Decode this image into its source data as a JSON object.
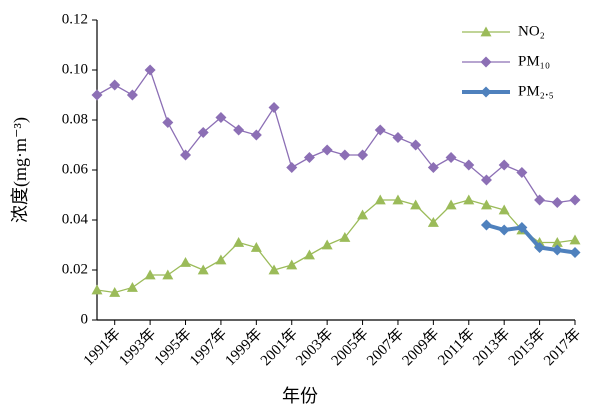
{
  "chart_data": {
    "type": "line",
    "x_label": "年份",
    "y_label": "浓度(mg·m⁻³)",
    "x": [
      1990,
      1991,
      1992,
      1993,
      1994,
      1995,
      1996,
      1997,
      1998,
      1999,
      2000,
      2001,
      2002,
      2003,
      2004,
      2005,
      2006,
      2007,
      2008,
      2009,
      2010,
      2011,
      2012,
      2013,
      2014,
      2015,
      2016,
      2017
    ],
    "xlim": [
      1990,
      2017
    ],
    "xticks": [
      {
        "value": 1991,
        "label": "1991年"
      },
      {
        "value": 1993,
        "label": "1993年"
      },
      {
        "value": 1995,
        "label": "1995年"
      },
      {
        "value": 1997,
        "label": "1997年"
      },
      {
        "value": 1999,
        "label": "1999年"
      },
      {
        "value": 2001,
        "label": "2001年"
      },
      {
        "value": 2003,
        "label": "2003年"
      },
      {
        "value": 2005,
        "label": "2005年"
      },
      {
        "value": 2007,
        "label": "2007年"
      },
      {
        "value": 2009,
        "label": "2009年"
      },
      {
        "value": 2011,
        "label": "2011年"
      },
      {
        "value": 2013,
        "label": "2013年"
      },
      {
        "value": 2015,
        "label": "2015年"
      },
      {
        "value": 2017,
        "label": "2017年"
      }
    ],
    "ylim": [
      0,
      0.12
    ],
    "yticks": [
      0,
      0.02,
      0.04,
      0.06,
      0.08,
      {
        "value": 0.1,
        "label": "0.10"
      },
      0.12
    ],
    "grid": false,
    "legend": "top-right",
    "series": [
      {
        "name": "NO₂",
        "color": "#9bbb59",
        "marker": "triangle",
        "values": [
          0.012,
          0.011,
          0.013,
          0.018,
          0.018,
          0.023,
          0.02,
          0.024,
          0.031,
          0.029,
          0.02,
          0.022,
          0.026,
          0.03,
          0.033,
          0.042,
          0.048,
          0.048,
          0.046,
          0.039,
          0.046,
          0.048,
          0.046,
          0.044,
          0.036,
          0.031,
          0.031,
          0.032
        ]
      },
      {
        "name": "PM₁₀",
        "color": "#8c6fb5",
        "marker": "diamond",
        "values": [
          0.09,
          0.094,
          0.09,
          0.1,
          0.079,
          0.066,
          0.075,
          0.081,
          0.076,
          0.074,
          0.085,
          0.061,
          0.065,
          0.068,
          0.066,
          0.066,
          0.076,
          0.073,
          0.07,
          0.061,
          0.065,
          0.062,
          0.056,
          0.062,
          0.059,
          0.048,
          0.047,
          0.048
        ]
      },
      {
        "name": "PM₂.₅",
        "color": "#4f81bd",
        "marker": "diamond",
        "line_width": 4,
        "values": [
          null,
          null,
          null,
          null,
          null,
          null,
          null,
          null,
          null,
          null,
          null,
          null,
          null,
          null,
          null,
          null,
          null,
          null,
          null,
          null,
          null,
          null,
          0.038,
          0.036,
          0.037,
          0.029,
          0.028,
          0.027
        ]
      }
    ]
  }
}
